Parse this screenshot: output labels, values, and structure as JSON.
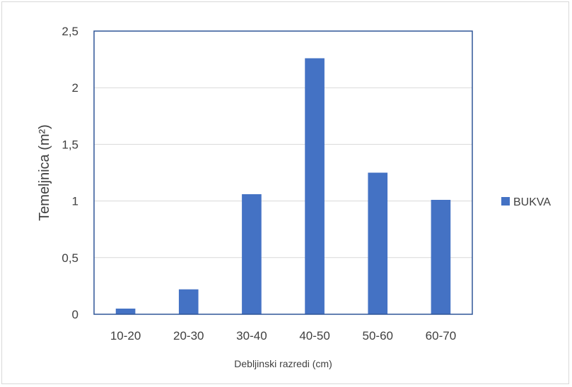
{
  "chart_data": {
    "type": "bar",
    "categories": [
      "10-20",
      "20-30",
      "30-40",
      "40-50",
      "50-60",
      "60-70"
    ],
    "series": [
      {
        "name": "BUKVA",
        "values": [
          0.05,
          0.22,
          1.06,
          2.26,
          1.25,
          1.01
        ]
      }
    ],
    "xlabel": "Debljinski razredi (cm)",
    "ylabel": "Temeljnica (m²)",
    "ylim": [
      0,
      2.5
    ],
    "yticks": [
      0,
      0.5,
      1,
      1.5,
      2,
      2.5
    ],
    "ytick_labels": [
      "0",
      "0,5",
      "1",
      "1,5",
      "2",
      "2,5"
    ],
    "grid": true,
    "legend_position": "right",
    "colors": {
      "bar": "#4472c4",
      "plot_border": "#2f5597",
      "grid": "#d9d9d9"
    }
  }
}
